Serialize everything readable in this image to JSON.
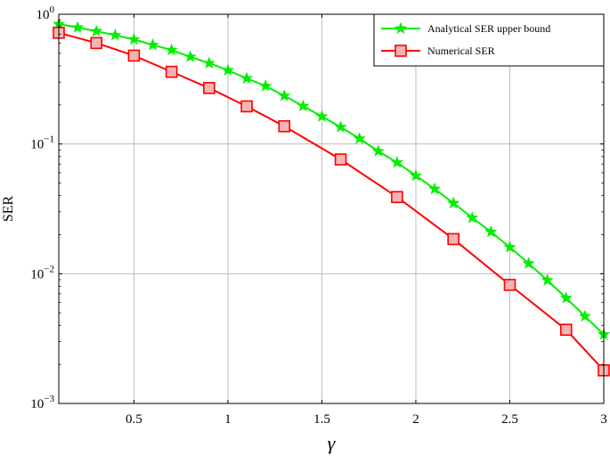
{
  "chart_data": {
    "type": "line",
    "xlabel": "γ",
    "ylabel": "SER",
    "xlim": [
      0.1,
      3.0
    ],
    "ylim": [
      0.001,
      1
    ],
    "yscale": "log",
    "grid": true,
    "legend_position": "top-right",
    "x_ticks": [
      0.5,
      1,
      1.5,
      2,
      2.5,
      3
    ],
    "x_tick_labels": [
      "0.5",
      "1",
      "1.5",
      "2",
      "2.5",
      "3"
    ],
    "y_ticks": [
      {
        "value": 1,
        "base": "10",
        "exp": "0"
      },
      {
        "value": 0.1,
        "base": "10",
        "exp": "−1"
      },
      {
        "value": 0.01,
        "base": "10",
        "exp": "−2"
      },
      {
        "value": 0.001,
        "base": "10",
        "exp": "−3"
      }
    ],
    "series": [
      {
        "name": "Analytical SER upper bound",
        "color": "#00ee00",
        "marker": "star",
        "x": [
          0.1,
          0.2,
          0.3,
          0.4,
          0.5,
          0.6,
          0.7,
          0.8,
          0.9,
          1.0,
          1.1,
          1.2,
          1.3,
          1.4,
          1.5,
          1.6,
          1.7,
          1.8,
          1.9,
          2.0,
          2.1,
          2.2,
          2.3,
          2.4,
          2.5,
          2.6,
          2.7,
          2.8,
          2.9,
          3.0
        ],
        "y": [
          0.84,
          0.79,
          0.74,
          0.69,
          0.64,
          0.58,
          0.53,
          0.47,
          0.42,
          0.37,
          0.32,
          0.28,
          0.235,
          0.196,
          0.163,
          0.135,
          0.11,
          0.088,
          0.072,
          0.057,
          0.045,
          0.035,
          0.027,
          0.021,
          0.016,
          0.012,
          0.0089,
          0.0065,
          0.0047,
          0.0034
        ]
      },
      {
        "name": "Numerical SER",
        "color": "#ff0000",
        "marker": "square",
        "x": [
          0.1,
          0.3,
          0.5,
          0.7,
          0.9,
          1.1,
          1.3,
          1.6,
          1.9,
          2.2,
          2.5,
          2.8,
          3.0
        ],
        "y": [
          0.72,
          0.6,
          0.48,
          0.36,
          0.27,
          0.195,
          0.137,
          0.076,
          0.039,
          0.0185,
          0.0082,
          0.0037,
          0.0018
        ]
      }
    ]
  }
}
